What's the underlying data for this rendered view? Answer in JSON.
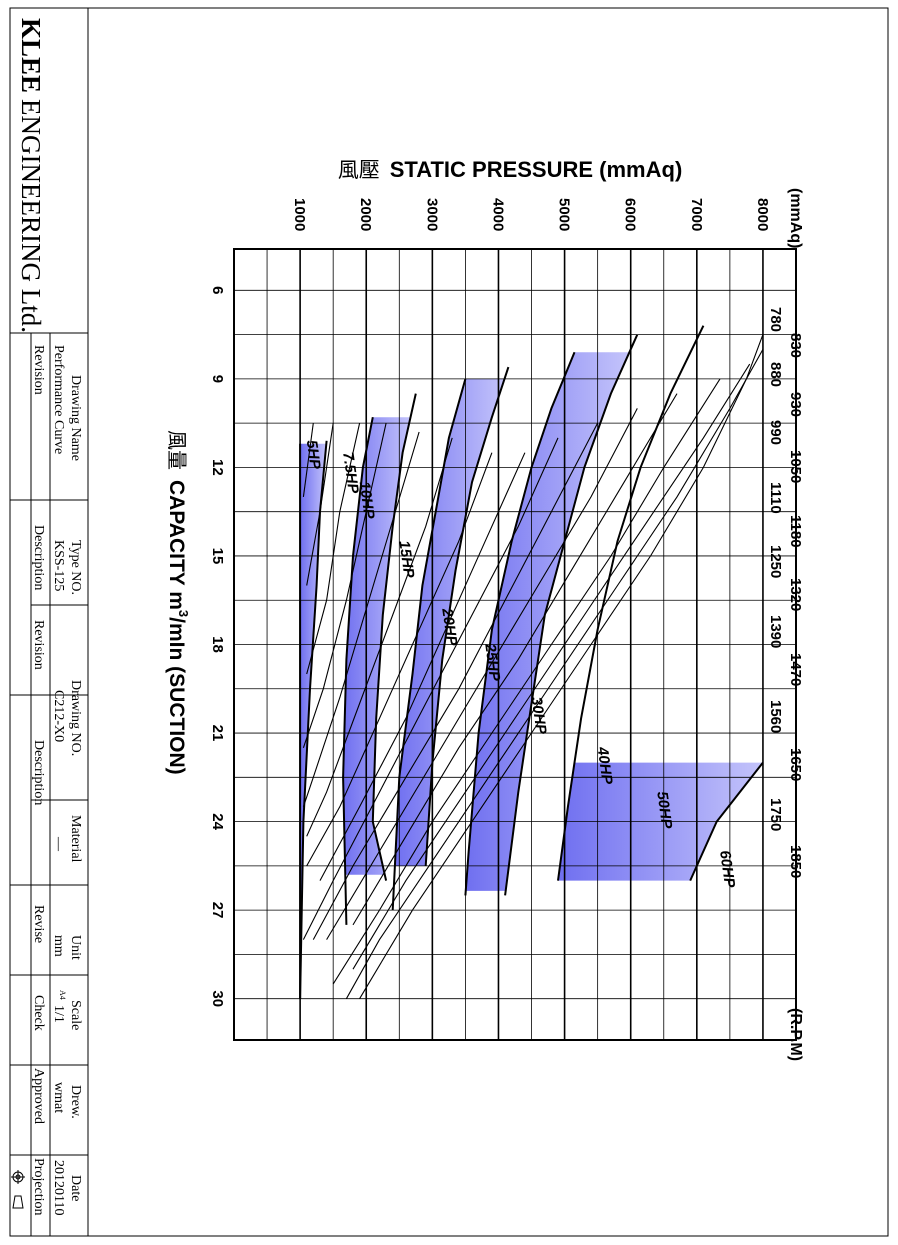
{
  "company": {
    "name_bold": "KLEE",
    "name_rest": "ENGINEERING Ltd."
  },
  "title_block": {
    "drawing_name_label": "Drawing Name",
    "drawing_name_value": "Performance Curve",
    "type_no_label": "Type NO.",
    "type_no_value": "KSS-125",
    "drawing_no_label": "Drawing NO.",
    "drawing_no_value": "C212-X0",
    "material_label": "Material",
    "material_value": "—",
    "unit_label": "Unit",
    "unit_value": "mm",
    "scale_label": "Scale",
    "scale_value": "1/1",
    "paper_size": "A4",
    "drew_label": "Drew.",
    "drew_value": "wmat",
    "date_label": "Date",
    "date_value": "20120110",
    "revision_label_1": "Revision",
    "description_label_1": "Description",
    "revision_label_2": "Revision",
    "description_label_2": "Description",
    "revise_label": "Revise",
    "check_label": "Check",
    "approved_label": "Approved",
    "projection_label": "Projection"
  },
  "chart_data": {
    "type": "line",
    "title_cjk": "風壓",
    "title": "STATIC PRESSURE (mmAq)",
    "pressure_unit": "(mmAq)",
    "xlabel_cjk": "風量",
    "xlabel": "CAPACITY m",
    "xlabel_sup": "3",
    "xlabel_suffix": "/mIn (SUCTION)",
    "rpm_unit": "(R.P.M)",
    "x_ticks": [
      "6",
      "9",
      "12",
      "15",
      "18",
      "21",
      "24",
      "27",
      "30"
    ],
    "y_ticks": [
      "1000",
      "2000",
      "3000",
      "4000",
      "5000",
      "6000",
      "7000",
      "8000"
    ],
    "xlim": [
      4.6,
      31.4
    ],
    "ylim": [
      0,
      8500
    ],
    "grid": true,
    "band_color": "#6f6ff0",
    "rpm_labels": [
      "780",
      "830",
      "880",
      "930",
      "990",
      "1050",
      "1110",
      "1180",
      "1250",
      "1320",
      "1390",
      "1470",
      "1560",
      "1650",
      "1750",
      "1850"
    ],
    "power_lines": [
      {
        "name": "5HP",
        "points": [
          [
            11.2,
            1000
          ],
          [
            13.5,
            1000
          ],
          [
            16,
            1000
          ],
          [
            19.5,
            1000
          ],
          [
            24,
            1000
          ],
          [
            30,
            1000
          ]
        ]
      },
      {
        "name": "7.5HP",
        "points": [
          [
            11.1,
            1400
          ],
          [
            13.5,
            1300
          ],
          [
            16,
            1250
          ],
          [
            19.5,
            1150
          ],
          [
            24,
            1050
          ],
          [
            30,
            1000
          ]
        ]
      },
      {
        "name": "10HP",
        "points": [
          [
            10.3,
            2100
          ],
          [
            12,
            1950
          ],
          [
            15,
            1800
          ],
          [
            18.5,
            1700
          ],
          [
            22.5,
            1650
          ],
          [
            27.5,
            1700
          ]
        ]
      },
      {
        "name": "15HP",
        "points": [
          [
            9.5,
            2750
          ],
          [
            11.5,
            2550
          ],
          [
            14,
            2400
          ],
          [
            17,
            2250
          ],
          [
            20.5,
            2150
          ],
          [
            24,
            2100
          ],
          [
            26,
            2300
          ]
        ]
      },
      {
        "name": "20HP",
        "points": [
          [
            9,
            3500
          ],
          [
            11,
            3250
          ],
          [
            13.5,
            3050
          ],
          [
            16,
            2850
          ],
          [
            19,
            2700
          ],
          [
            22.5,
            2500
          ],
          [
            27,
            2400
          ]
        ]
      },
      {
        "name": "25HP",
        "points": [
          [
            8.6,
            4150
          ],
          [
            10.3,
            3900
          ],
          [
            12.5,
            3600
          ],
          [
            15.5,
            3350
          ],
          [
            18.5,
            3150
          ],
          [
            22,
            3000
          ],
          [
            25.5,
            2900
          ]
        ]
      },
      {
        "name": "30HP",
        "points": [
          [
            8.1,
            5150
          ],
          [
            10,
            4800
          ],
          [
            12,
            4500
          ],
          [
            14.5,
            4200
          ],
          [
            17.5,
            3900
          ],
          [
            21,
            3700
          ],
          [
            25,
            3550
          ],
          [
            26.5,
            3500
          ]
        ]
      },
      {
        "name": "40HP",
        "points": [
          [
            7.5,
            6100
          ],
          [
            9.5,
            5700
          ],
          [
            12,
            5300
          ],
          [
            14.5,
            5000
          ],
          [
            17,
            4700
          ],
          [
            20,
            4500
          ],
          [
            23,
            4300
          ],
          [
            26.5,
            4100
          ]
        ]
      },
      {
        "name": "50HP",
        "points": [
          [
            7.2,
            7100
          ],
          [
            9.5,
            6600
          ],
          [
            12,
            6150
          ],
          [
            14.5,
            5800
          ],
          [
            17.5,
            5500
          ],
          [
            20.5,
            5250
          ],
          [
            23.5,
            5050
          ],
          [
            26,
            4900
          ]
        ]
      },
      {
        "name": "60HP",
        "points": [
          [
            22,
            8000
          ],
          [
            24,
            7300
          ],
          [
            26,
            6900
          ]
        ]
      }
    ],
    "bands": [
      [
        "5HP",
        "7.5HP"
      ],
      [
        "10HP",
        "15HP"
      ],
      [
        "20HP",
        "25HP"
      ],
      [
        "30HP",
        "40HP"
      ],
      [
        "50HP",
        "60HP"
      ]
    ],
    "power_labels": [
      {
        "text": "5HP",
        "x": 11.1,
        "y": 1100
      },
      {
        "text": "7.5HP",
        "x": 11.5,
        "y": 1650
      },
      {
        "text": "10HP",
        "x": 12.5,
        "y": 1900
      },
      {
        "text": "15HP",
        "x": 14.5,
        "y": 2500
      },
      {
        "text": "20HP",
        "x": 16.8,
        "y": 3150
      },
      {
        "text": "25HP",
        "x": 18,
        "y": 3800
      },
      {
        "text": "30HP",
        "x": 19.8,
        "y": 4500
      },
      {
        "text": "40HP",
        "x": 21.5,
        "y": 5500
      },
      {
        "text": "50HP",
        "x": 23,
        "y": 6400
      },
      {
        "text": "60HP",
        "x": 25,
        "y": 7350
      }
    ],
    "rpm_curves": [
      {
        "rpm": "780",
        "points": [
          [
            7.5,
            8000
          ],
          [
            9,
            7750
          ],
          [
            12,
            7100
          ],
          [
            15,
            6300
          ],
          [
            18,
            5400
          ],
          [
            21,
            4500
          ],
          [
            24,
            3600
          ],
          [
            27,
            2700
          ],
          [
            30,
            1900
          ]
        ]
      },
      {
        "rpm": "830",
        "points": [
          [
            8,
            8000
          ],
          [
            10,
            7500
          ],
          [
            13,
            6700
          ],
          [
            16,
            5800
          ],
          [
            19,
            4900
          ],
          [
            22,
            4000
          ],
          [
            25,
            3100
          ],
          [
            28,
            2200
          ],
          [
            30,
            1700
          ]
        ]
      },
      {
        "rpm": "880",
        "points": [
          [
            8.5,
            7800
          ],
          [
            11,
            7100
          ],
          [
            14,
            6200
          ],
          [
            17,
            5300
          ],
          [
            20,
            4400
          ],
          [
            23,
            3500
          ],
          [
            26,
            2600
          ],
          [
            29,
            1800
          ]
        ]
      },
      {
        "rpm": "930",
        "points": [
          [
            9,
            7350
          ],
          [
            12,
            6500
          ],
          [
            15,
            5700
          ],
          [
            18,
            4800
          ],
          [
            21,
            3900
          ],
          [
            24,
            3000
          ],
          [
            27,
            2200
          ],
          [
            29.5,
            1500
          ]
        ]
      },
      {
        "rpm": "990",
        "points": [
          [
            9.5,
            6700
          ],
          [
            12.5,
            5900
          ],
          [
            15.5,
            5100
          ],
          [
            18.5,
            4300
          ],
          [
            21.5,
            3400
          ],
          [
            24.5,
            2600
          ],
          [
            27.5,
            1800
          ]
        ]
      },
      {
        "rpm": "1050",
        "points": [
          [
            10,
            6100
          ],
          [
            13,
            5400
          ],
          [
            16,
            4600
          ],
          [
            19,
            3800
          ],
          [
            22,
            3000
          ],
          [
            25,
            2200
          ],
          [
            28,
            1400
          ]
        ]
      },
      {
        "rpm": "1110",
        "points": [
          [
            10.5,
            5500
          ],
          [
            13.5,
            4800
          ],
          [
            16.5,
            4100
          ],
          [
            19.5,
            3400
          ],
          [
            22.5,
            2600
          ],
          [
            25.5,
            1800
          ],
          [
            28,
            1200
          ]
        ]
      },
      {
        "rpm": "1180",
        "points": [
          [
            11,
            4900
          ],
          [
            14,
            4300
          ],
          [
            17,
            3600
          ],
          [
            20,
            2900
          ],
          [
            23,
            2200
          ],
          [
            26,
            1500
          ],
          [
            28,
            1050
          ]
        ]
      },
      {
        "rpm": "1250",
        "points": [
          [
            11.5,
            4400
          ],
          [
            14.5,
            3800
          ],
          [
            17.5,
            3200
          ],
          [
            20.5,
            2600
          ],
          [
            23.5,
            1900
          ],
          [
            26,
            1300
          ]
        ]
      },
      {
        "rpm": "1320",
        "points": [
          [
            11.5,
            3900
          ],
          [
            14.5,
            3400
          ],
          [
            17.5,
            2800
          ],
          [
            20.5,
            2200
          ],
          [
            23.5,
            1600
          ],
          [
            25.5,
            1100
          ]
        ]
      },
      {
        "rpm": "1390",
        "points": [
          [
            11,
            3300
          ],
          [
            14,
            2900
          ],
          [
            17,
            2400
          ],
          [
            20,
            1900
          ],
          [
            23,
            1400
          ],
          [
            24.5,
            1100
          ]
        ]
      },
      {
        "rpm": "1470",
        "points": [
          [
            10.8,
            2800
          ],
          [
            13.8,
            2400
          ],
          [
            16.8,
            2000
          ],
          [
            19.8,
            1600
          ],
          [
            22.5,
            1200
          ],
          [
            23.5,
            1050
          ]
        ]
      },
      {
        "rpm": "1560",
        "points": [
          [
            10.5,
            2300
          ],
          [
            13.5,
            2000
          ],
          [
            16.5,
            1700
          ],
          [
            19.5,
            1350
          ],
          [
            21.5,
            1050
          ]
        ]
      },
      {
        "rpm": "1650",
        "points": [
          [
            10.5,
            1900
          ],
          [
            13.5,
            1600
          ],
          [
            16.5,
            1400
          ],
          [
            19,
            1100
          ]
        ]
      },
      {
        "rpm": "1750",
        "points": [
          [
            10.5,
            1500
          ],
          [
            13.5,
            1300
          ],
          [
            16,
            1100
          ]
        ]
      },
      {
        "rpm": "1850",
        "points": [
          [
            10.5,
            1200
          ],
          [
            13,
            1050
          ]
        ]
      }
    ]
  }
}
